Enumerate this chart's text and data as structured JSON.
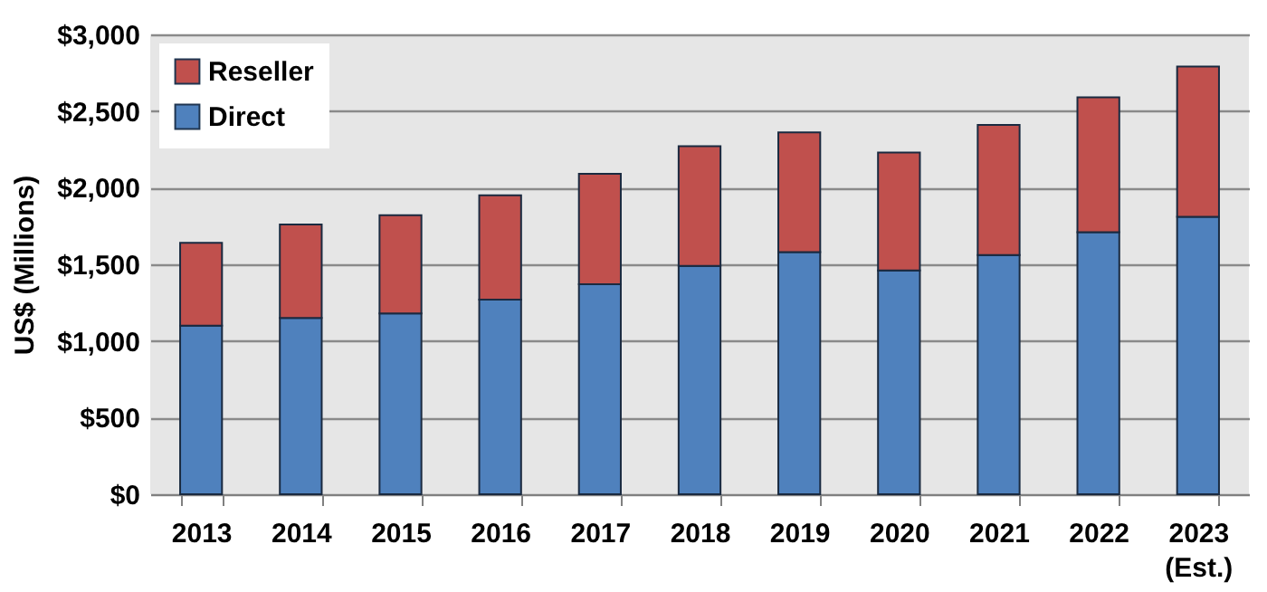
{
  "chart_data": {
    "type": "bar",
    "stacked": true,
    "ylabel": "US$ (Millions)",
    "categories": [
      "2013",
      "2014",
      "2015",
      "2016",
      "2017",
      "2018",
      "2019",
      "2020",
      "2021",
      "2022",
      "2023 (Est.)"
    ],
    "series": [
      {
        "name": "Direct",
        "color": "#4f81bd",
        "values": [
          1100,
          1150,
          1180,
          1270,
          1370,
          1490,
          1580,
          1460,
          1560,
          1710,
          1810
        ]
      },
      {
        "name": "Reseller",
        "color": "#c0504d",
        "values": [
          540,
          610,
          640,
          680,
          720,
          780,
          780,
          770,
          850,
          880,
          980
        ]
      }
    ],
    "ylim": [
      0,
      3000
    ],
    "yticks": [
      {
        "value": 0,
        "label": "$0"
      },
      {
        "value": 500,
        "label": "$500"
      },
      {
        "value": 1000,
        "label": "$1,000"
      },
      {
        "value": 1500,
        "label": "$1,500"
      },
      {
        "value": 2000,
        "label": "$2,000"
      },
      {
        "value": 2500,
        "label": "$2,500"
      },
      {
        "value": 3000,
        "label": "$3,000"
      }
    ],
    "grid": "y",
    "legend": "top left"
  }
}
